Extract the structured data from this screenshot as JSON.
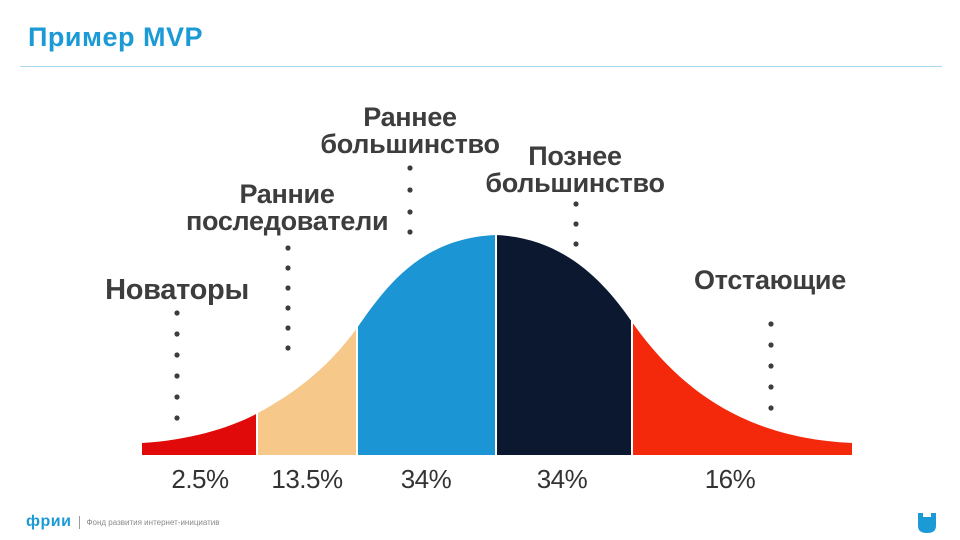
{
  "header": {
    "title": "Пример MVP"
  },
  "diagram": {
    "segments": [
      {
        "id": "innovators",
        "label_lines": [
          "Новаторы"
        ],
        "percent": "2.5%",
        "color": "#e00a0a"
      },
      {
        "id": "early-adopters",
        "label_lines": [
          "Ранние",
          "последователи"
        ],
        "percent": "13.5%",
        "color": "#f6c98a"
      },
      {
        "id": "early-majority",
        "label_lines": [
          "Раннее",
          "большинство"
        ],
        "percent": "34%",
        "color": "#1b95d4"
      },
      {
        "id": "late-majority",
        "label_lines": [
          "Познее",
          "большинство"
        ],
        "percent": "34%",
        "color": "#0c1830"
      },
      {
        "id": "laggards",
        "label_lines": [
          "Отстающие"
        ],
        "percent": "16%",
        "color": "#f4290b"
      }
    ]
  },
  "footer": {
    "brand": "фрии",
    "tagline": "Фонд развития интернет-инициатив"
  }
}
